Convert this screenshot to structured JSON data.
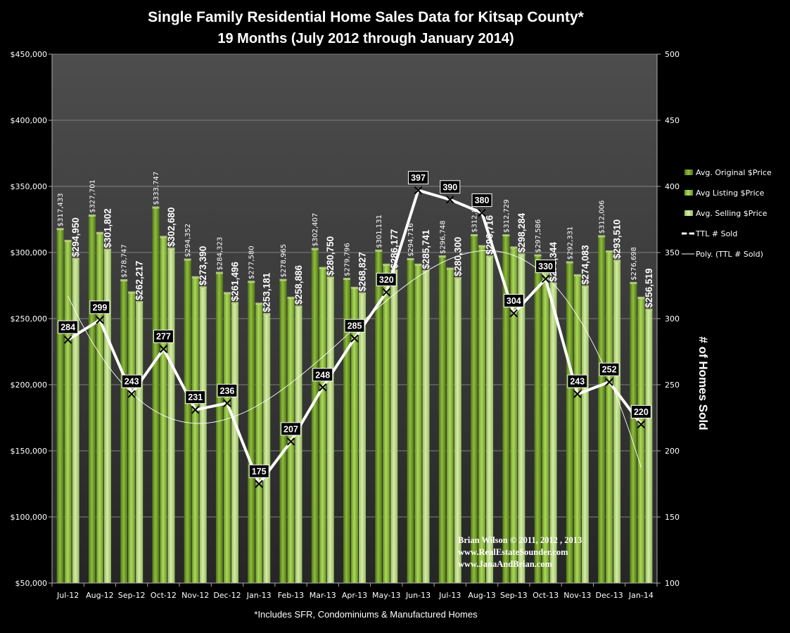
{
  "chart_data": {
    "type": "bar",
    "title": "Single Family Residential Home Sales Data for Kitsap County*",
    "subtitle": "19 Months (July 2012 through January 2014)",
    "footnote": "*Includes SFR, Condominiums & Manufactured Homes",
    "categories": [
      "Jul-12",
      "Aug-12",
      "Sep-12",
      "Oct-12",
      "Nov-12",
      "Dec-12",
      "Jan-13",
      "Feb-13",
      "Mar-13",
      "Apr-13",
      "May-13",
      "Jun-13",
      "Jul-13",
      "Aug-13",
      "Sep-13",
      "Oct-13",
      "Nov-13",
      "Dec-13",
      "Jan-14"
    ],
    "series": [
      {
        "name": "Avg. Original $Price",
        "axis": "left",
        "color": "#6f9a2a",
        "values": [
          317433,
          327701,
          278747,
          333747,
          294352,
          284323,
          277580,
          278965,
          302407,
          279796,
          301131,
          294716,
          296748,
          312812,
          312729,
          297586,
          292331,
          312006,
          276698
        ]
      },
      {
        "name": "Avg Listing $Price",
        "axis": "left",
        "color": "#8bb83e",
        "values": [
          308500,
          314500,
          269500,
          311500,
          281000,
          269000,
          261000,
          265500,
          288000,
          273000,
          290500,
          290500,
          287500,
          304500,
          303500,
          284000,
          282500,
          300500,
          265500
        ]
      },
      {
        "name": "Avg. Selling $Price",
        "axis": "left",
        "color": "#b6d780",
        "values": [
          294950,
          301802,
          262217,
          302680,
          273390,
          261496,
          253181,
          258886,
          280750,
          268827,
          286177,
          285741,
          280300,
          296716,
          298284,
          276344,
          274083,
          293510,
          256519
        ]
      },
      {
        "name": "TTL # Sold",
        "axis": "right",
        "type": "line",
        "color": "#ffffff",
        "values": [
          284,
          299,
          243,
          277,
          231,
          236,
          175,
          207,
          248,
          285,
          320,
          397,
          390,
          380,
          304,
          330,
          243,
          252,
          220
        ]
      },
      {
        "name": "Poly. (TTL # Sold)",
        "axis": "right",
        "type": "trendline",
        "color": "#ffffff"
      }
    ],
    "original_price_labels": [
      "$317,433",
      "$327,701",
      "$278,747",
      "$333,747",
      "$294,352",
      "$284,323",
      "$277,580",
      "$278,965",
      "$302,407",
      "$279,796",
      "$301,131",
      "$294,716",
      "$296,748",
      "$312,812",
      "$312,729",
      "$297,586",
      "$292,331",
      "$312,006",
      "$276,698"
    ],
    "selling_price_labels": [
      "$294,950",
      "$301,802",
      "$262,217",
      "$302,680",
      "$273,390",
      "$261,496",
      "$253,181",
      "$258,886",
      "$280,750",
      "$268,827",
      "$286,177",
      "$285,741",
      "$280,300",
      "$296,716",
      "$298,284",
      "$276,344",
      "$274,083",
      "$293,510",
      "$256,519"
    ],
    "y_left": {
      "min": 50000,
      "max": 450000,
      "step": 50000,
      "tick_labels": [
        "$50,000",
        "$100,000",
        "$150,000",
        "$200,000",
        "$250,000",
        "$300,000",
        "$350,000",
        "$400,000",
        "$450,000"
      ]
    },
    "y_right": {
      "min": 100,
      "max": 500,
      "step": 50,
      "label": "# of Homes Sold",
      "tick_labels": [
        "100",
        "150",
        "200",
        "250",
        "300",
        "350",
        "400",
        "450",
        "500"
      ]
    },
    "grid": true,
    "legend_position": "right"
  },
  "credits": [
    "Brian Wilson  © 2011, 2012 , 2013",
    "www.RealEstateSounder.com",
    "www.JanaAndBrian.com"
  ],
  "colors": {
    "background": "#000000",
    "plot_top": "#4a4a4a",
    "plot_bottom": "#2a2a2a",
    "grid": "#808080"
  }
}
